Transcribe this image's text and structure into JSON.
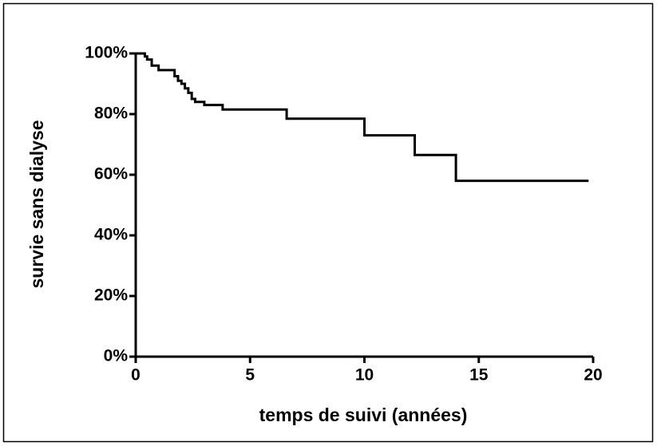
{
  "chart_data": {
    "type": "line",
    "step": "post",
    "xlabel": "temps de suivi (années)",
    "ylabel": "survie sans dialyse",
    "x": [
      0,
      0.4,
      0.5,
      0.7,
      1.0,
      1.7,
      1.85,
      2.0,
      2.15,
      2.3,
      2.45,
      2.6,
      3.0,
      3.8,
      6.6,
      10.0,
      12.2,
      14.0,
      19.8
    ],
    "series": [
      {
        "color": "#000000",
        "values": [
          100,
          99,
          98,
          96,
          94.5,
          92.5,
          91,
          90,
          88.5,
          87,
          85,
          84,
          83,
          81.5,
          78.5,
          73,
          66.5,
          58,
          58
        ]
      }
    ],
    "xlim": [
      0,
      20
    ],
    "xticks": [
      0,
      5,
      10,
      15,
      20
    ],
    "ylim": [
      0,
      100
    ],
    "yticks": [
      {
        "value": 0,
        "label": "0%"
      },
      {
        "value": 20,
        "label": "20%"
      },
      {
        "value": 40,
        "label": "40%"
      },
      {
        "value": 60,
        "label": "60%"
      },
      {
        "value": 80,
        "label": "80%"
      },
      {
        "value": 100,
        "label": "100%"
      }
    ]
  }
}
